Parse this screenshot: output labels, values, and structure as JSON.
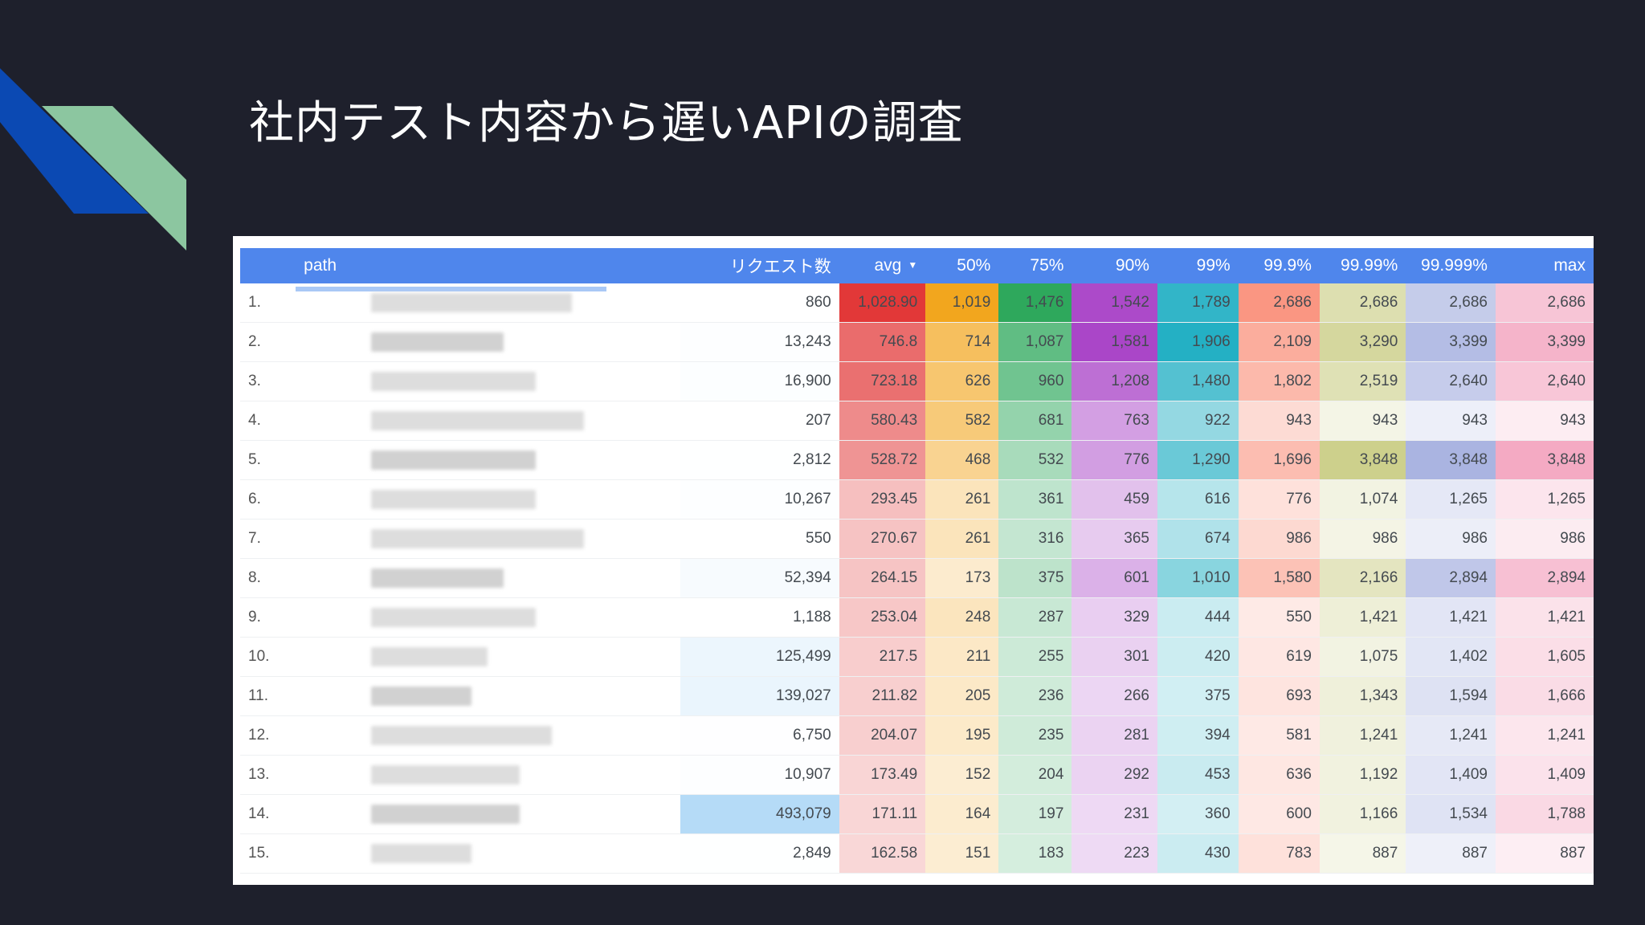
{
  "slide": {
    "title": "社内テスト内容から遅いAPIの調査"
  },
  "colors": {
    "background": "#1e202c",
    "header": "#4f86ec",
    "deco_blue": "#0b49b3",
    "deco_green": "#8cc6a0"
  },
  "table": {
    "columns": [
      "",
      "path",
      "リクエスト数",
      "avg",
      "50%",
      "75%",
      "90%",
      "99%",
      "99.9%",
      "99.99%",
      "99.999%",
      "max"
    ],
    "sort_icon": "sort-desc-icon",
    "rows": [
      {
        "idx": "1.",
        "count": "860",
        "avg": "1,028.90",
        "p50": "1,019",
        "p75": "1,476",
        "p90": "1,542",
        "p99": "1,789",
        "p999": "2,686",
        "p9999": "2,686",
        "p99999": "2,686",
        "max": "2,686"
      },
      {
        "idx": "2.",
        "count": "13,243",
        "avg": "746.8",
        "p50": "714",
        "p75": "1,087",
        "p90": "1,581",
        "p99": "1,906",
        "p999": "2,109",
        "p9999": "3,290",
        "p99999": "3,399",
        "max": "3,399"
      },
      {
        "idx": "3.",
        "count": "16,900",
        "avg": "723.18",
        "p50": "626",
        "p75": "960",
        "p90": "1,208",
        "p99": "1,480",
        "p999": "1,802",
        "p9999": "2,519",
        "p99999": "2,640",
        "max": "2,640"
      },
      {
        "idx": "4.",
        "count": "207",
        "avg": "580.43",
        "p50": "582",
        "p75": "681",
        "p90": "763",
        "p99": "922",
        "p999": "943",
        "p9999": "943",
        "p99999": "943",
        "max": "943"
      },
      {
        "idx": "5.",
        "count": "2,812",
        "avg": "528.72",
        "p50": "468",
        "p75": "532",
        "p90": "776",
        "p99": "1,290",
        "p999": "1,696",
        "p9999": "3,848",
        "p99999": "3,848",
        "max": "3,848"
      },
      {
        "idx": "6.",
        "count": "10,267",
        "avg": "293.45",
        "p50": "261",
        "p75": "361",
        "p90": "459",
        "p99": "616",
        "p999": "776",
        "p9999": "1,074",
        "p99999": "1,265",
        "max": "1,265"
      },
      {
        "idx": "7.",
        "count": "550",
        "avg": "270.67",
        "p50": "261",
        "p75": "316",
        "p90": "365",
        "p99": "674",
        "p999": "986",
        "p9999": "986",
        "p99999": "986",
        "max": "986"
      },
      {
        "idx": "8.",
        "count": "52,394",
        "avg": "264.15",
        "p50": "173",
        "p75": "375",
        "p90": "601",
        "p99": "1,010",
        "p999": "1,580",
        "p9999": "2,166",
        "p99999": "2,894",
        "max": "2,894"
      },
      {
        "idx": "9.",
        "count": "1,188",
        "avg": "253.04",
        "p50": "248",
        "p75": "287",
        "p90": "329",
        "p99": "444",
        "p999": "550",
        "p9999": "1,421",
        "p99999": "1,421",
        "max": "1,421"
      },
      {
        "idx": "10.",
        "count": "125,499",
        "avg": "217.5",
        "p50": "211",
        "p75": "255",
        "p90": "301",
        "p99": "420",
        "p999": "619",
        "p9999": "1,075",
        "p99999": "1,402",
        "max": "1,605"
      },
      {
        "idx": "11.",
        "count": "139,027",
        "avg": "211.82",
        "p50": "205",
        "p75": "236",
        "p90": "266",
        "p99": "375",
        "p999": "693",
        "p9999": "1,343",
        "p99999": "1,594",
        "max": "1,666"
      },
      {
        "idx": "12.",
        "count": "6,750",
        "avg": "204.07",
        "p50": "195",
        "p75": "235",
        "p90": "281",
        "p99": "394",
        "p999": "581",
        "p9999": "1,241",
        "p99999": "1,241",
        "max": "1,241"
      },
      {
        "idx": "13.",
        "count": "10,907",
        "avg": "173.49",
        "p50": "152",
        "p75": "204",
        "p90": "292",
        "p99": "453",
        "p999": "636",
        "p9999": "1,192",
        "p99999": "1,409",
        "max": "1,409"
      },
      {
        "idx": "14.",
        "count": "493,079",
        "avg": "171.11",
        "p50": "164",
        "p75": "197",
        "p90": "231",
        "p99": "360",
        "p999": "600",
        "p9999": "1,166",
        "p99999": "1,534",
        "max": "1,788"
      },
      {
        "idx": "15.",
        "count": "2,849",
        "avg": "162.58",
        "p50": "151",
        "p75": "183",
        "p90": "223",
        "p99": "430",
        "p999": "783",
        "p9999": "887",
        "p99999": "887",
        "max": "887"
      }
    ]
  }
}
